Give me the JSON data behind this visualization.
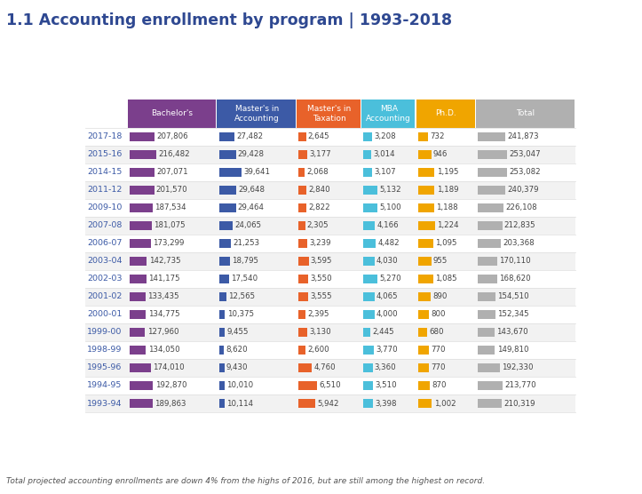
{
  "title": "1.1 Accounting enrollment by program | 1993-2018",
  "title_color": "#2E4891",
  "footer": "Total projected accounting enrollments are down 4% from the highs of 2016, but are still among the highest on record.",
  "columns": [
    "Bachelor's",
    "Master's in\nAccounting",
    "Master's in\nTaxation",
    "MBA\nAccounting",
    "Ph.D.",
    "Total"
  ],
  "col_colors": [
    "#7B3F8C",
    "#3C5AA6",
    "#E8622A",
    "#4BBFDB",
    "#F0A500",
    "#B0B0B0"
  ],
  "rows": [
    {
      "year": "2017-18",
      "bachelors": 207806,
      "masters_acc": 27482,
      "masters_tax": 2645,
      "mba": 3208,
      "phd": 732,
      "total": 241873
    },
    {
      "year": "2015-16",
      "bachelors": 216482,
      "masters_acc": 29428,
      "masters_tax": 3177,
      "mba": 3014,
      "phd": 946,
      "total": 253047
    },
    {
      "year": "2014-15",
      "bachelors": 207071,
      "masters_acc": 39641,
      "masters_tax": 2068,
      "mba": 3107,
      "phd": 1195,
      "total": 253082
    },
    {
      "year": "2011-12",
      "bachelors": 201570,
      "masters_acc": 29648,
      "masters_tax": 2840,
      "mba": 5132,
      "phd": 1189,
      "total": 240379
    },
    {
      "year": "2009-10",
      "bachelors": 187534,
      "masters_acc": 29464,
      "masters_tax": 2822,
      "mba": 5100,
      "phd": 1188,
      "total": 226108
    },
    {
      "year": "2007-08",
      "bachelors": 181075,
      "masters_acc": 24065,
      "masters_tax": 2305,
      "mba": 4166,
      "phd": 1224,
      "total": 212835
    },
    {
      "year": "2006-07",
      "bachelors": 173299,
      "masters_acc": 21253,
      "masters_tax": 3239,
      "mba": 4482,
      "phd": 1095,
      "total": 203368
    },
    {
      "year": "2003-04",
      "bachelors": 142735,
      "masters_acc": 18795,
      "masters_tax": 3595,
      "mba": 4030,
      "phd": 955,
      "total": 170110
    },
    {
      "year": "2002-03",
      "bachelors": 141175,
      "masters_acc": 17540,
      "masters_tax": 3550,
      "mba": 5270,
      "phd": 1085,
      "total": 168620
    },
    {
      "year": "2001-02",
      "bachelors": 133435,
      "masters_acc": 12565,
      "masters_tax": 3555,
      "mba": 4065,
      "phd": 890,
      "total": 154510
    },
    {
      "year": "2000-01",
      "bachelors": 134775,
      "masters_acc": 10375,
      "masters_tax": 2395,
      "mba": 4000,
      "phd": 800,
      "total": 152345
    },
    {
      "year": "1999-00",
      "bachelors": 127960,
      "masters_acc": 9455,
      "masters_tax": 3130,
      "mba": 2445,
      "phd": 680,
      "total": 143670
    },
    {
      "year": "1998-99",
      "bachelors": 134050,
      "masters_acc": 8620,
      "masters_tax": 2600,
      "mba": 3770,
      "phd": 770,
      "total": 149810
    },
    {
      "year": "1995-96",
      "bachelors": 174010,
      "masters_acc": 9430,
      "masters_tax": 4760,
      "mba": 3360,
      "phd": 770,
      "total": 192330
    },
    {
      "year": "1994-95",
      "bachelors": 192870,
      "masters_acc": 10010,
      "masters_tax": 6510,
      "mba": 3510,
      "phd": 870,
      "total": 213770
    },
    {
      "year": "1993-94",
      "bachelors": 189863,
      "masters_acc": 10114,
      "masters_tax": 5942,
      "mba": 3398,
      "phd": 1002,
      "total": 210319
    }
  ],
  "bg_color": "#FFFFFF",
  "row_alt_color": "#F2F2F2",
  "row_color": "#FFFFFF",
  "year_color": "#3C5AA6",
  "data_color": "#444444",
  "bar_max_bachelors": 220000,
  "bar_max_masters_acc": 42000,
  "bar_max_masters_tax": 7000,
  "bar_max_mba": 6000,
  "bar_max_phd": 1300,
  "bar_max_total": 260000
}
